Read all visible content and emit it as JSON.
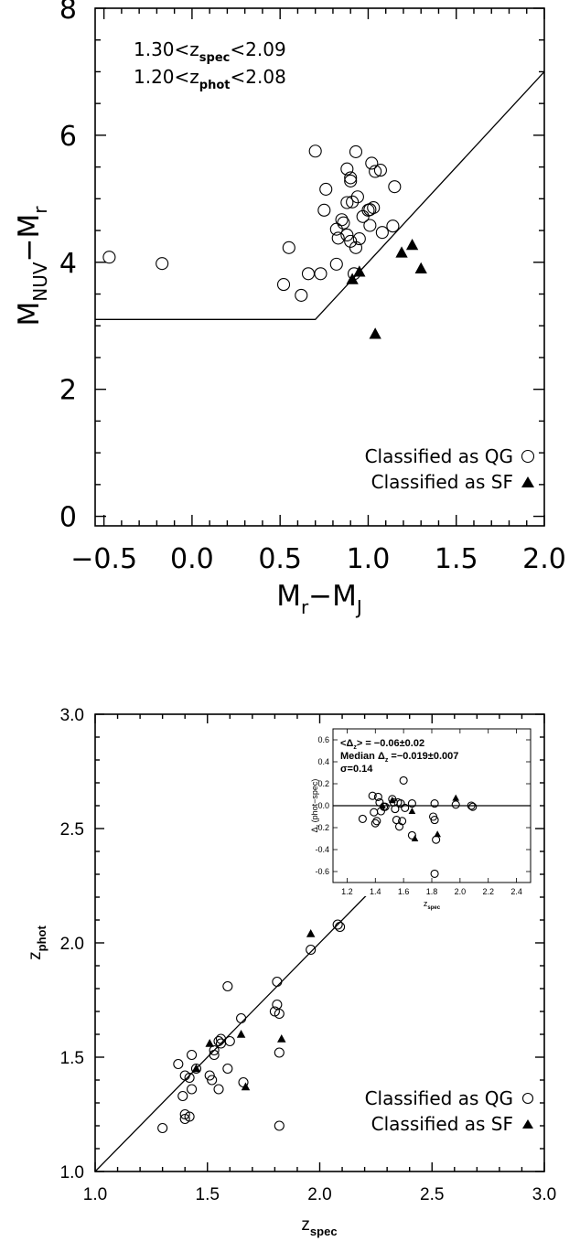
{
  "chart_data": [
    {
      "type": "scatter",
      "xlabel": "M",
      "xlabel_sub1": "r",
      "xlabel_mid": "−M",
      "xlabel_sub2": "J",
      "ylabel": "M",
      "ylabel_sub1": "NUV",
      "ylabel_mid": "−M",
      "ylabel_sub2": "r",
      "xlim": [
        -0.55,
        2.0
      ],
      "ylim": [
        -0.15,
        8.0
      ],
      "xticks": [
        "−0.5",
        "0.0",
        "0.5",
        "1.0",
        "1.5",
        "2.0"
      ],
      "xtick_values": [
        -0.5,
        0.0,
        0.5,
        1.0,
        1.5,
        2.0
      ],
      "yticks": [
        "0",
        "2",
        "4",
        "6",
        "8"
      ],
      "ytick_values": [
        0,
        2,
        4,
        6,
        8
      ],
      "annotation": {
        "line1": {
          "pre": "1.30<z",
          "sub": "spec",
          "post": "<2.09"
        },
        "line2": {
          "pre": "1.20<z",
          "sub": "phot",
          "post": "<2.08"
        }
      },
      "legend": {
        "position": "bottom-right",
        "qg_label": "Classified as QG",
        "sf_label": "Classified as SF"
      },
      "dividing_line": [
        [
          -0.55,
          3.1
        ],
        [
          0.7,
          3.1
        ],
        [
          2.0,
          7.0
        ]
      ],
      "series": [
        {
          "name": "Classified as QG",
          "marker": "open-circle",
          "points": [
            [
              -0.47,
              4.08
            ],
            [
              -0.17,
              3.98
            ],
            [
              0.52,
              3.65
            ],
            [
              0.55,
              4.23
            ],
            [
              0.62,
              3.48
            ],
            [
              0.66,
              3.82
            ],
            [
              0.7,
              5.75
            ],
            [
              0.73,
              3.82
            ],
            [
              0.75,
              4.82
            ],
            [
              0.76,
              5.15
            ],
            [
              0.82,
              3.97
            ],
            [
              0.82,
              4.52
            ],
            [
              0.83,
              4.38
            ],
            [
              0.85,
              4.67
            ],
            [
              0.86,
              4.62
            ],
            [
              0.88,
              5.47
            ],
            [
              0.88,
              4.94
            ],
            [
              0.88,
              4.43
            ],
            [
              0.9,
              5.33
            ],
            [
              0.9,
              5.28
            ],
            [
              0.9,
              4.33
            ],
            [
              0.91,
              4.95
            ],
            [
              0.92,
              3.82
            ],
            [
              0.93,
              5.74
            ],
            [
              0.93,
              4.23
            ],
            [
              0.94,
              5.03
            ],
            [
              0.95,
              4.37
            ],
            [
              0.97,
              4.72
            ],
            [
              1.0,
              4.82
            ],
            [
              1.01,
              4.83
            ],
            [
              1.01,
              4.58
            ],
            [
              1.02,
              5.56
            ],
            [
              1.03,
              4.86
            ],
            [
              1.04,
              5.43
            ],
            [
              1.07,
              5.45
            ],
            [
              1.08,
              4.47
            ],
            [
              1.14,
              4.57
            ],
            [
              1.15,
              5.19
            ]
          ]
        },
        {
          "name": "Classified as SF",
          "marker": "filled-triangle",
          "points": [
            [
              0.91,
              3.73
            ],
            [
              0.95,
              3.85
            ],
            [
              1.04,
              2.87
            ],
            [
              1.19,
              4.15
            ],
            [
              1.25,
              4.27
            ],
            [
              1.3,
              3.9
            ]
          ]
        }
      ]
    },
    {
      "type": "scatter",
      "xlabel": "z",
      "xlabel_sub": "spec",
      "ylabel": "z",
      "ylabel_sub": "phot",
      "xlim": [
        1.0,
        3.0
      ],
      "ylim": [
        1.0,
        3.0
      ],
      "xticks": [
        "1.0",
        "1.5",
        "2.0",
        "2.5",
        "3.0"
      ],
      "xtick_values": [
        1.0,
        1.5,
        2.0,
        2.5,
        3.0
      ],
      "yticks": [
        "1.0",
        "1.5",
        "2.0",
        "2.5",
        "3.0"
      ],
      "ytick_values": [
        1.0,
        1.5,
        2.0,
        2.5,
        3.0
      ],
      "one_to_one_line": true,
      "legend": {
        "position": "bottom-right",
        "qg_label": "Classified as QG",
        "sf_label": "Classified as SF"
      },
      "series": [
        {
          "name": "Classified as QG",
          "marker": "open-circle",
          "points": [
            [
              1.3,
              1.19
            ],
            [
              1.37,
              1.47
            ],
            [
              1.39,
              1.33
            ],
            [
              1.4,
              1.23
            ],
            [
              1.4,
              1.25
            ],
            [
              1.4,
              1.42
            ],
            [
              1.42,
              1.24
            ],
            [
              1.42,
              1.41
            ],
            [
              1.43,
              1.51
            ],
            [
              1.43,
              1.36
            ],
            [
              1.45,
              1.45
            ],
            [
              1.51,
              1.42
            ],
            [
              1.52,
              1.4
            ],
            [
              1.53,
              1.53
            ],
            [
              1.53,
              1.51
            ],
            [
              1.55,
              1.57
            ],
            [
              1.55,
              1.36
            ],
            [
              1.56,
              1.58
            ],
            [
              1.56,
              1.56
            ],
            [
              1.59,
              1.45
            ],
            [
              1.59,
              1.81
            ],
            [
              1.6,
              1.57
            ],
            [
              1.65,
              1.67
            ],
            [
              1.66,
              1.39
            ],
            [
              1.8,
              1.7
            ],
            [
              1.81,
              1.83
            ],
            [
              1.81,
              1.73
            ],
            [
              1.82,
              1.69
            ],
            [
              1.82,
              1.52
            ],
            [
              1.82,
              1.2
            ],
            [
              1.96,
              1.97
            ],
            [
              2.08,
              2.08
            ],
            [
              2.09,
              2.07
            ]
          ]
        },
        {
          "name": "Classified as SF",
          "marker": "filled-triangle",
          "points": [
            [
              1.45,
              1.45
            ],
            [
              1.51,
              1.56
            ],
            [
              1.65,
              1.6
            ],
            [
              1.67,
              1.37
            ],
            [
              1.83,
              1.58
            ],
            [
              1.96,
              2.04
            ]
          ]
        }
      ],
      "inset": {
        "type": "scatter",
        "xlabel": "z",
        "xlabel_sub": "spec",
        "ylabel": "Δ",
        "ylabel_sub": "z",
        "ylabel_post": " (phot−spec)",
        "xlim": [
          1.1,
          2.5
        ],
        "ylim": [
          -0.7,
          0.7
        ],
        "xticks": [
          "1.2",
          "1.4",
          "1.6",
          "1.8",
          "2.0",
          "2.2",
          "2.4"
        ],
        "xtick_values": [
          1.2,
          1.4,
          1.6,
          1.8,
          2.0,
          2.2,
          2.4
        ],
        "yticks": [
          "0.6",
          "0.4",
          "0.2",
          "0.0",
          "-0.2",
          "-0.4",
          "-0.6"
        ],
        "ytick_values": [
          0.6,
          0.4,
          0.2,
          0.0,
          -0.2,
          -0.4,
          -0.6
        ],
        "zero_line": true,
        "stats": {
          "line1": "<Δ",
          "line1_sub": "z",
          "line1_post": "> = −0.06±0.02",
          "line2": "Median Δ",
          "line2_sub": "z",
          "line2_post": " =−0.019±0.007",
          "line3": "σ=0.14"
        },
        "series": [
          {
            "name": "Classified as QG",
            "marker": "open-circle",
            "points": [
              [
                1.31,
                -0.12
              ],
              [
                1.38,
                0.09
              ],
              [
                1.39,
                -0.06
              ],
              [
                1.4,
                -0.16
              ],
              [
                1.41,
                -0.14
              ],
              [
                1.42,
                0.08
              ],
              [
                1.43,
                0.03
              ],
              [
                1.44,
                -0.05
              ],
              [
                1.46,
                -0.01
              ],
              [
                1.47,
                -0.01
              ],
              [
                1.52,
                0.06
              ],
              [
                1.53,
                0.03
              ],
              [
                1.54,
                -0.03
              ],
              [
                1.55,
                -0.13
              ],
              [
                1.56,
                0.03
              ],
              [
                1.57,
                -0.19
              ],
              [
                1.58,
                0.02
              ],
              [
                1.59,
                -0.14
              ],
              [
                1.6,
                0.23
              ],
              [
                1.61,
                -0.02
              ],
              [
                1.66,
                0.02
              ],
              [
                1.66,
                -0.27
              ],
              [
                1.81,
                -0.1
              ],
              [
                1.82,
                0.02
              ],
              [
                1.82,
                -0.13
              ],
              [
                1.83,
                -0.31
              ],
              [
                1.82,
                -0.62
              ],
              [
                1.97,
                0.01
              ],
              [
                2.08,
                0.0
              ],
              [
                2.09,
                -0.01
              ]
            ]
          },
          {
            "name": "Classified as SF",
            "marker": "filled-triangle",
            "points": [
              [
                1.45,
                0.0
              ],
              [
                1.52,
                0.05
              ],
              [
                1.66,
                -0.05
              ],
              [
                1.68,
                -0.3
              ],
              [
                1.84,
                -0.26
              ],
              [
                1.97,
                0.07
              ]
            ]
          }
        ]
      }
    }
  ]
}
